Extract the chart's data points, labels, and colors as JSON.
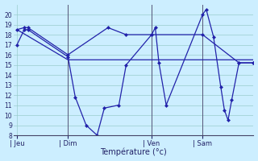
{
  "xlabel": "Température (°c)",
  "background_color": "#cceeff",
  "grid_color": "#99cccc",
  "line_color": "#2222aa",
  "vline_color": "#555577",
  "ylim": [
    8,
    21
  ],
  "yticks": [
    8,
    9,
    10,
    11,
    12,
    13,
    14,
    15,
    16,
    17,
    18,
    19,
    20
  ],
  "day_labels": [
    "| Jeu",
    "| Dim",
    "| Ven",
    "| Sam"
  ],
  "day_positions": [
    0,
    14,
    37,
    51
  ],
  "xlim": [
    -1,
    65
  ],
  "series1_x": [
    0,
    2,
    3,
    14,
    16,
    19,
    22,
    24,
    28,
    30,
    37,
    38,
    39,
    41,
    51,
    52,
    54,
    56,
    57,
    58,
    59,
    61,
    65
  ],
  "series1_y": [
    17,
    18.5,
    18.5,
    15.8,
    11.8,
    9.0,
    8.0,
    10.7,
    11.0,
    15.0,
    18.0,
    18.7,
    15.2,
    11.0,
    20.0,
    20.5,
    17.8,
    12.8,
    10.5,
    9.5,
    11.5,
    15.2,
    15.2
  ],
  "series2_x": [
    0,
    2,
    3,
    14,
    25,
    30,
    37,
    51,
    61,
    65
  ],
  "series2_y": [
    18.5,
    18.7,
    18.7,
    16.0,
    18.7,
    18.0,
    18.0,
    18.0,
    15.2,
    15.2
  ],
  "series3_x": [
    0,
    14,
    30,
    37,
    51,
    65
  ],
  "series3_y": [
    18.5,
    15.5,
    15.5,
    15.5,
    15.5,
    15.5
  ],
  "vline_positions": [
    14,
    37,
    51
  ]
}
